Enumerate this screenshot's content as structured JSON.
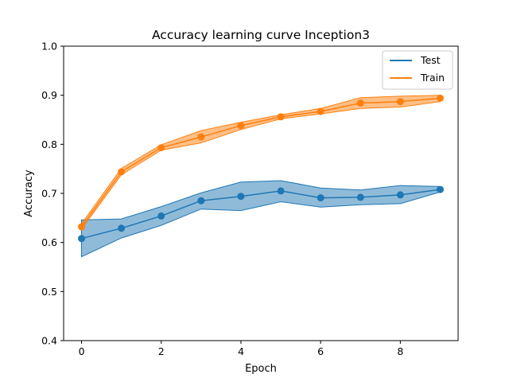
{
  "chart_data": {
    "type": "line",
    "title": "Accuracy learning curve Inception3",
    "xlabel": "Epoch",
    "ylabel": "Accuracy",
    "xlim": [
      -0.45,
      9.45
    ],
    "ylim": [
      0.4,
      1.0
    ],
    "xticks": [
      0,
      2,
      4,
      6,
      8
    ],
    "xtick_labels": [
      "0",
      "2",
      "4",
      "6",
      "8"
    ],
    "yticks": [
      0.4,
      0.5,
      0.6,
      0.7,
      0.8,
      0.9,
      1.0
    ],
    "ytick_labels": [
      "0.4",
      "0.5",
      "0.6",
      "0.7",
      "0.8",
      "0.9",
      "1.0"
    ],
    "grid": false,
    "legend_position": "top-right",
    "x": [
      0,
      1,
      2,
      3,
      4,
      5,
      6,
      7,
      8,
      9
    ],
    "series": [
      {
        "name": "Test",
        "color": "#1f77b4",
        "values": [
          0.608,
          0.629,
          0.654,
          0.685,
          0.694,
          0.705,
          0.691,
          0.692,
          0.697,
          0.708
        ],
        "lower": [
          0.571,
          0.609,
          0.635,
          0.668,
          0.665,
          0.683,
          0.672,
          0.677,
          0.679,
          0.703
        ],
        "upper": [
          0.646,
          0.648,
          0.673,
          0.701,
          0.723,
          0.726,
          0.711,
          0.707,
          0.716,
          0.714
        ]
      },
      {
        "name": "Train",
        "color": "#ff7f0e",
        "values": [
          0.632,
          0.744,
          0.793,
          0.815,
          0.838,
          0.856,
          0.867,
          0.884,
          0.887,
          0.894
        ],
        "lower": [
          0.627,
          0.738,
          0.788,
          0.803,
          0.83,
          0.852,
          0.862,
          0.873,
          0.876,
          0.887
        ],
        "upper": [
          0.638,
          0.751,
          0.799,
          0.828,
          0.845,
          0.86,
          0.873,
          0.895,
          0.898,
          0.9
        ]
      }
    ]
  }
}
